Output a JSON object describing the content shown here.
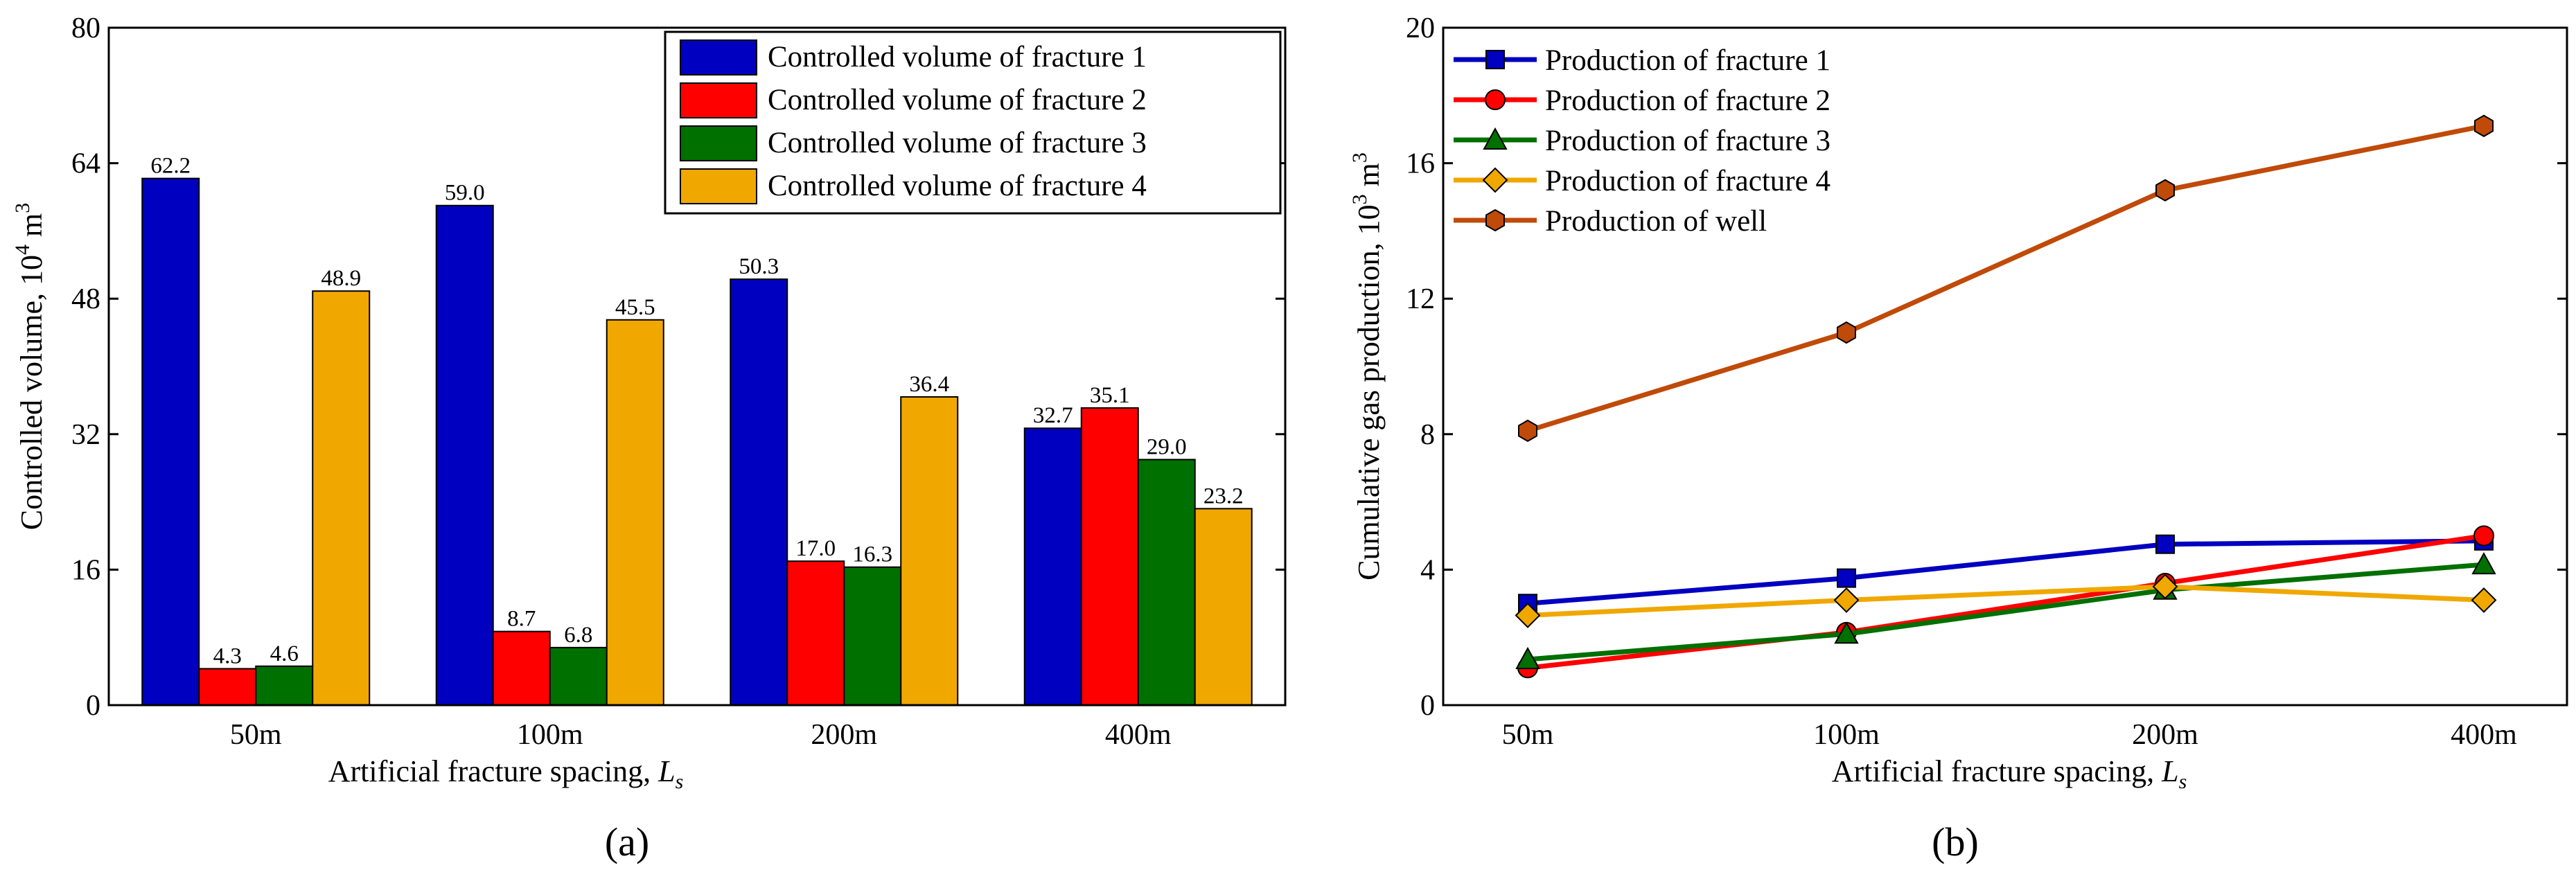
{
  "chart_data": [
    {
      "type": "bar",
      "panel_label": "(a)",
      "categories": [
        "50m",
        "100m",
        "200m",
        "400m"
      ],
      "series": [
        {
          "name": "Controlled volume of fracture 1",
          "color": "#0000c0",
          "values": [
            62.2,
            59.0,
            50.3,
            32.7
          ],
          "labels": [
            "62.2",
            "59.0",
            "50.3",
            "32.7"
          ]
        },
        {
          "name": "Controlled volume of fracture 2",
          "color": "#ff0000",
          "values": [
            4.3,
            8.7,
            17.0,
            35.1
          ],
          "labels": [
            "4.3",
            "8.7",
            "17.0",
            "35.1"
          ]
        },
        {
          "name": "Controlled volume of fracture 3",
          "color": "#007000",
          "values": [
            4.6,
            6.8,
            16.3,
            29.0
          ],
          "labels": [
            "4.6",
            "6.8",
            "16.3",
            "29.0"
          ]
        },
        {
          "name": "Controlled volume of fracture 4",
          "color": "#f0a800",
          "values": [
            48.9,
            45.5,
            36.4,
            23.2
          ],
          "labels": [
            "48.9",
            "45.5",
            "36.4",
            "23.2"
          ]
        }
      ],
      "xlabel": "Artificial fracture spacing, ",
      "xlabel_symbol": "L",
      "xlabel_subscript": "s",
      "ylabel": "Controlled volume, 10",
      "ylabel_exp": "4",
      "ylabel_unit": " m",
      "ylabel_unit_exp": "3",
      "ylim": [
        0,
        80
      ],
      "yticks": [
        0,
        16,
        32,
        48,
        64,
        80
      ],
      "legend_position": "top-right"
    },
    {
      "type": "line",
      "panel_label": "(b)",
      "categories": [
        "50m",
        "100m",
        "200m",
        "400m"
      ],
      "series": [
        {
          "name": "Production of fracture 1",
          "color": "#0000c0",
          "marker": "square",
          "values": [
            3.0,
            3.75,
            4.75,
            4.85
          ]
        },
        {
          "name": "Production of fracture 2",
          "color": "#ff0000",
          "marker": "circle",
          "values": [
            1.1,
            2.15,
            3.6,
            5.0
          ]
        },
        {
          "name": "Production of fracture 3",
          "color": "#007000",
          "marker": "triangle",
          "values": [
            1.35,
            2.1,
            3.4,
            4.15
          ]
        },
        {
          "name": "Production of fracture 4",
          "color": "#f0a800",
          "marker": "diamond",
          "values": [
            2.65,
            3.1,
            3.5,
            3.1
          ]
        },
        {
          "name": "Production of well",
          "color": "#c04a08",
          "marker": "hexagon",
          "values": [
            8.1,
            11.0,
            15.2,
            17.1
          ]
        }
      ],
      "xlabel": "Artificial fracture spacing, ",
      "xlabel_symbol": "L",
      "xlabel_subscript": "s",
      "ylabel": "Cumulative gas production, 10",
      "ylabel_exp": "3",
      "ylabel_unit": " m",
      "ylabel_unit_exp": "3",
      "ylim": [
        0,
        20
      ],
      "yticks": [
        0,
        4,
        8,
        12,
        16,
        20
      ],
      "legend_position": "top-left"
    }
  ]
}
